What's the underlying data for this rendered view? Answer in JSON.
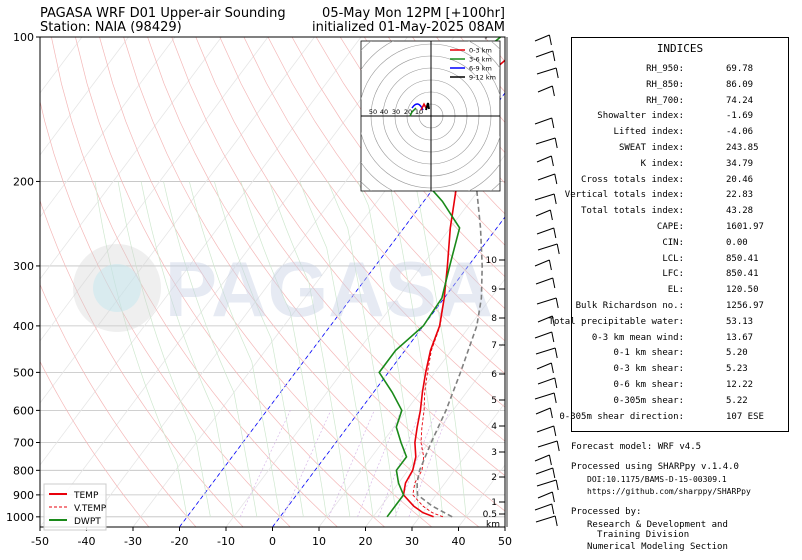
{
  "header": {
    "title_left": "PAGASA WRF D01 Upper-air Sounding",
    "station": "Station: NAIA (98429)",
    "valid_time": "05-May Mon 12PM [+100hr]",
    "init_time": "initialized 01-May-2025 08AM"
  },
  "watermark": "PAGASA",
  "chart_data": {
    "type": "line",
    "title": "",
    "xlabel": "",
    "ylabel": "",
    "x_ticks": [
      "-50",
      "-40",
      "-30",
      "-20",
      "-10",
      "0",
      "10",
      "20",
      "30",
      "40",
      "50"
    ],
    "y_ticks": [
      "100",
      "200",
      "300",
      "400",
      "500",
      "600",
      "700",
      "800",
      "900",
      "1000"
    ],
    "xlim": [
      -50,
      50
    ],
    "ylim": [
      1050,
      100
    ],
    "y_scale": "log",
    "grid": true,
    "legend_position": "lower-left",
    "legend": [
      "TEMP",
      "V.TEMP",
      "DWPT"
    ],
    "series": [
      {
        "name": "TEMP",
        "color": "#e8000b",
        "points": [
          [
            33,
            1000
          ],
          [
            30,
            980
          ],
          [
            27,
            950
          ],
          [
            23,
            900
          ],
          [
            21.5,
            850
          ],
          [
            21,
            800
          ],
          [
            19.5,
            750
          ],
          [
            17,
            700
          ],
          [
            15,
            650
          ],
          [
            13,
            600
          ],
          [
            10.5,
            550
          ],
          [
            8,
            500
          ],
          [
            5.5,
            450
          ],
          [
            3.5,
            400
          ],
          [
            0,
            350
          ],
          [
            -4.5,
            300
          ],
          [
            -10,
            250
          ],
          [
            -16,
            200
          ],
          [
            -22,
            170
          ],
          [
            -26,
            150
          ],
          [
            -28,
            130
          ],
          [
            -25,
            110
          ],
          [
            -23,
            100
          ]
        ]
      },
      {
        "name": "V.TEMP",
        "color": "#e8000b",
        "points": [
          [
            35,
            1000
          ],
          [
            32,
            980
          ],
          [
            29,
            950
          ],
          [
            25,
            900
          ],
          [
            23.5,
            850
          ],
          [
            23,
            800
          ],
          [
            21.2,
            750
          ],
          [
            18.3,
            700
          ],
          [
            16,
            650
          ],
          [
            13.8,
            600
          ],
          [
            11,
            550
          ],
          [
            8.4,
            500
          ],
          [
            5.7,
            450
          ],
          [
            3.6,
            400
          ],
          [
            0,
            350
          ],
          [
            -4.5,
            300
          ],
          [
            -10,
            250
          ],
          [
            -16,
            200
          ],
          [
            -22,
            170
          ],
          [
            -26,
            150
          ],
          [
            -28,
            130
          ],
          [
            -25,
            110
          ],
          [
            -23,
            100
          ]
        ]
      },
      {
        "name": "DWPT",
        "color": "#1a8a1a",
        "points": [
          [
            23,
            1000
          ],
          [
            23,
            950
          ],
          [
            23,
            900
          ],
          [
            20,
            850
          ],
          [
            17.5,
            800
          ],
          [
            17.5,
            750
          ],
          [
            14,
            700
          ],
          [
            10.5,
            650
          ],
          [
            9,
            600
          ],
          [
            4,
            550
          ],
          [
            -2,
            500
          ],
          [
            -2,
            450
          ],
          [
            0,
            400
          ],
          [
            -0.5,
            350
          ],
          [
            -4,
            300
          ],
          [
            -8,
            250
          ],
          [
            -16,
            220
          ],
          [
            -23,
            200
          ],
          [
            -25,
            180
          ],
          [
            -27,
            160
          ],
          [
            -30,
            140
          ],
          [
            -32,
            120
          ],
          [
            -32,
            110
          ],
          [
            -30,
            100
          ]
        ]
      },
      {
        "name": "",
        "color": "#808080",
        "points": [
          [
            37,
            1000
          ],
          [
            31,
            950
          ],
          [
            26,
            900
          ],
          [
            24,
            850
          ],
          [
            22.5,
            800
          ],
          [
            20.5,
            700
          ],
          [
            18.5,
            600
          ],
          [
            15.5,
            500
          ],
          [
            11.5,
            400
          ],
          [
            8,
            350
          ],
          [
            3,
            300
          ],
          [
            -3.5,
            250
          ],
          [
            -12,
            200
          ],
          [
            -18,
            170
          ],
          [
            -23,
            150
          ],
          [
            -28,
            130
          ],
          [
            -32,
            110
          ],
          [
            -33,
            100
          ]
        ]
      }
    ],
    "height_labels": [
      "1",
      "0.5",
      "2",
      "3",
      "4",
      "5",
      "6",
      "7",
      "8",
      "9",
      "10",
      "km"
    ],
    "hodograph": {
      "ring_labels": [
        "50",
        "40",
        "30",
        "20",
        "10"
      ],
      "legend": [
        "0-3 km",
        "3-6 km",
        "6-9 km",
        "9-12 km"
      ],
      "legend_colors": [
        "#e8000b",
        "#1a8a1a",
        "#0000ff",
        "#000000"
      ]
    }
  },
  "indices": {
    "title": "INDICES",
    "rows": [
      {
        "label": "RH_950:",
        "value": "69.78"
      },
      {
        "label": "RH_850:",
        "value": "86.09"
      },
      {
        "label": "RH_700:",
        "value": "74.24"
      },
      {
        "label": "Showalter index:",
        "value": "-1.69"
      },
      {
        "label": "Lifted index:",
        "value": "-4.06"
      },
      {
        "label": "SWEAT index:",
        "value": "243.85"
      },
      {
        "label": "K index:",
        "value": "34.79"
      },
      {
        "label": "Cross totals index:",
        "value": "20.46"
      },
      {
        "label": "Vertical totals index:",
        "value": "22.83"
      },
      {
        "label": "Total totals index:",
        "value": "43.28"
      },
      {
        "label": "CAPE:",
        "value": "1601.97"
      },
      {
        "label": "CIN:",
        "value": "0.00"
      },
      {
        "label": "LCL:",
        "value": "850.41"
      },
      {
        "label": "LFC:",
        "value": "850.41"
      },
      {
        "label": "EL:",
        "value": "120.50"
      },
      {
        "label": "Bulk Richardson no.:",
        "value": "1256.97"
      },
      {
        "label": "Total precipitable water:",
        "value": "53.13"
      },
      {
        "label": "0-3 km mean wind:",
        "value": "13.67"
      },
      {
        "label": "0-1 km shear:",
        "value": "5.20"
      },
      {
        "label": "0-3 km shear:",
        "value": "5.23"
      },
      {
        "label": "0-6 km shear:",
        "value": "12.22"
      },
      {
        "label": "0-305m shear:",
        "value": "5.22"
      },
      {
        "label": "0-305m shear direction:",
        "value": "107 ESE"
      }
    ]
  },
  "footer": {
    "model": "Forecast model: WRF v4.5",
    "processed_with": "Processed using SHARPpy v.1.4.0",
    "doi": "DOI:10.1175/BAMS-D-15-00309.1",
    "url": "https://github.com/sharppy/SHARPpy",
    "processed_by": "Processed by:",
    "org1": "Research & Development and",
    "org2": "Training Division",
    "org3": "Numerical Modeling Section"
  }
}
